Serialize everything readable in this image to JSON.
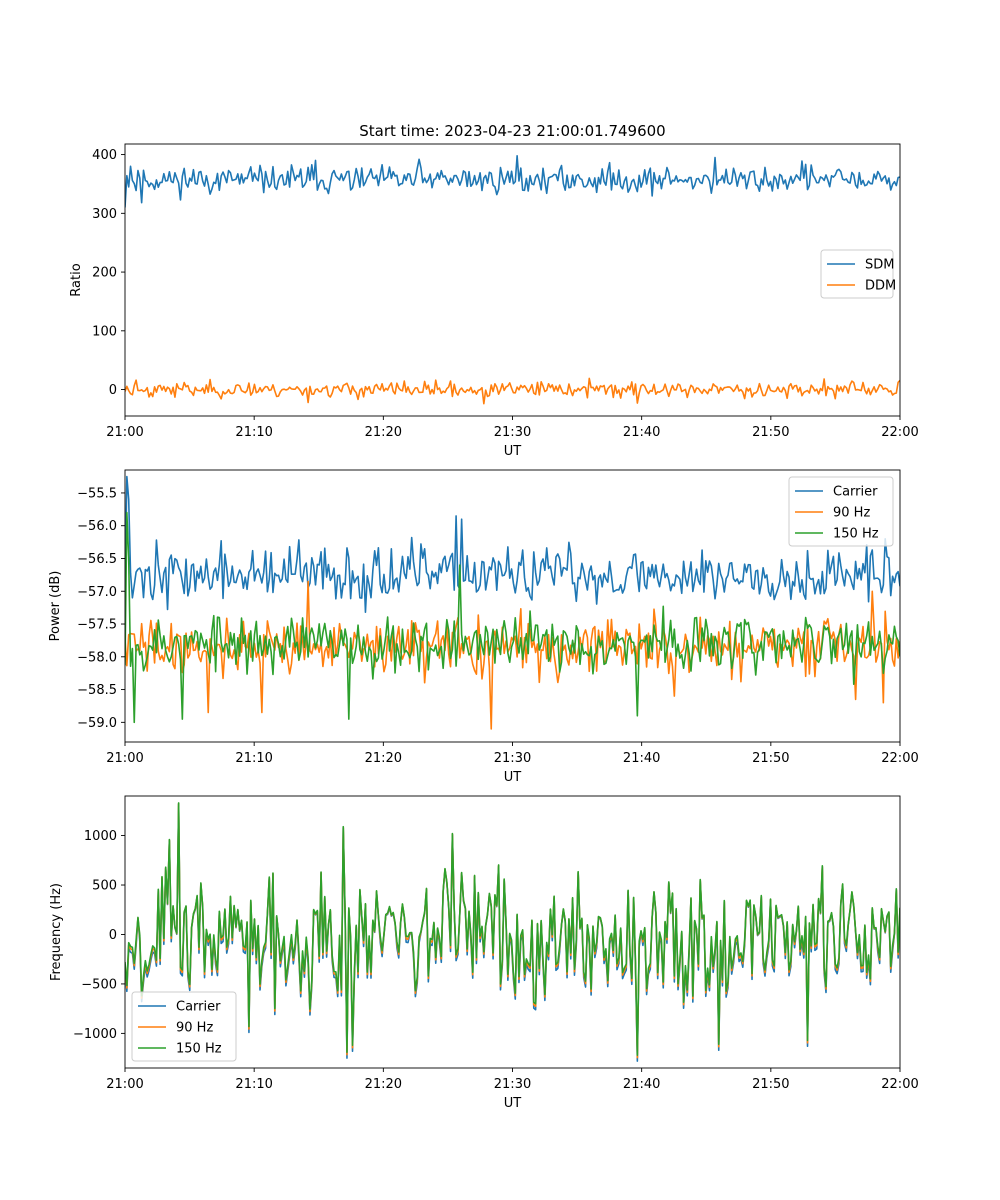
{
  "figure": {
    "suptitle": "Start time: 2023-04-23 21:00:01.749600"
  },
  "colors": {
    "blue": "#1f77b4",
    "orange": "#ff7f0e",
    "green": "#2ca02c"
  },
  "chart_data": [
    {
      "type": "line",
      "title": "Start time: 2023-04-23 21:00:01.749600",
      "xlabel": "UT",
      "ylabel": "Ratio",
      "x_ticks": [
        "21:00",
        "21:10",
        "21:20",
        "21:30",
        "21:40",
        "21:50",
        "22:00"
      ],
      "xlim": [
        "21:00",
        "22:00"
      ],
      "ylim": [
        -45,
        418
      ],
      "y_ticks": [
        0,
        100,
        200,
        300,
        400
      ],
      "y_tick_labels": [
        "0",
        "100",
        "200",
        "300",
        "400"
      ],
      "legend_position": "center-right",
      "grid": false,
      "series": [
        {
          "name": "SDM",
          "color": "#1f77b4",
          "mean": 357,
          "amplitude": 16,
          "seed": 11,
          "spikes": [
            [
              0,
              310
            ],
            [
              0.4,
              380
            ],
            [
              1.3,
              318
            ],
            [
              14.7,
              390
            ],
            [
              22.8,
              392
            ],
            [
              30.3,
              398
            ],
            [
              45.7,
              395
            ],
            [
              52.4,
              389
            ],
            [
              59.9,
              361
            ]
          ]
        },
        {
          "name": "DDM",
          "color": "#ff7f0e",
          "mean": 0,
          "amplitude": 9,
          "seed": 23,
          "spikes": [
            [
              0.9,
              16
            ],
            [
              14.2,
              -22
            ],
            [
              27.8,
              -24
            ],
            [
              35.9,
              19
            ],
            [
              39.7,
              -23
            ],
            [
              54.1,
              18
            ]
          ]
        }
      ]
    },
    {
      "type": "line",
      "xlabel": "UT",
      "ylabel": "Power (dB)",
      "x_ticks": [
        "21:00",
        "21:10",
        "21:20",
        "21:30",
        "21:40",
        "21:50",
        "22:00"
      ],
      "xlim": [
        "21:00",
        "22:00"
      ],
      "ylim": [
        -59.3,
        -55.15
      ],
      "y_ticks": [
        -59.0,
        -58.5,
        -58.0,
        -57.5,
        -57.0,
        -56.5,
        -56.0,
        -55.5
      ],
      "y_tick_labels": [
        "−59.0",
        "−58.5",
        "−58.0",
        "−57.5",
        "−57.0",
        "−56.5",
        "−56.0",
        "−55.5"
      ],
      "legend_position": "upper-right",
      "grid": false,
      "series": [
        {
          "name": "Carrier",
          "color": "#1f77b4",
          "mean": -56.75,
          "amplitude": 0.3,
          "seed": 37,
          "spikes": [
            [
              0.1,
              -55.25
            ],
            [
              0.3,
              -55.6
            ],
            [
              0.6,
              -57.1
            ],
            [
              25.7,
              -55.85
            ],
            [
              26.1,
              -55.9
            ],
            [
              58.9,
              -56.2
            ],
            [
              59.9,
              -56.7
            ]
          ]
        },
        {
          "name": "90 Hz",
          "color": "#ff7f0e",
          "mean": -57.85,
          "amplitude": 0.3,
          "seed": 41,
          "spikes": [
            [
              6.5,
              -58.85
            ],
            [
              10.6,
              -58.85
            ],
            [
              28.3,
              -59.1
            ],
            [
              42.5,
              -58.6
            ],
            [
              56.6,
              -58.65
            ],
            [
              58.7,
              -58.7
            ],
            [
              57.8,
              -57.0
            ],
            [
              14.2,
              -56.85
            ]
          ]
        },
        {
          "name": "150 Hz",
          "color": "#2ca02c",
          "mean": -57.8,
          "amplitude": 0.3,
          "seed": 53,
          "spikes": [
            [
              0.1,
              -55.8
            ],
            [
              0.3,
              -56.5
            ],
            [
              0.7,
              -59.0
            ],
            [
              4.4,
              -58.95
            ],
            [
              17.3,
              -58.95
            ],
            [
              25.9,
              -56.6
            ],
            [
              39.7,
              -58.9
            ]
          ]
        }
      ]
    },
    {
      "type": "line",
      "xlabel": "UT",
      "ylabel": "Frequency (Hz)",
      "x_ticks": [
        "21:00",
        "21:10",
        "21:20",
        "21:30",
        "21:40",
        "21:50",
        "22:00"
      ],
      "xlim": [
        "21:00",
        "22:00"
      ],
      "ylim": [
        -1350,
        1400
      ],
      "y_ticks": [
        -1000,
        -500,
        0,
        500,
        1000
      ],
      "y_tick_labels": [
        "−1000",
        "−500",
        "0",
        "500",
        "1000"
      ],
      "legend_position": "lower-left",
      "grid": false,
      "series": [
        {
          "name": "Carrier",
          "color": "#1f77b4",
          "offset": -60,
          "mean": 0,
          "amplitude": 430,
          "seed": 67,
          "spikes": [
            [
              4.2,
              1330
            ],
            [
              3.5,
              960
            ],
            [
              9.6,
              -930
            ],
            [
              16.9,
              1090
            ],
            [
              17.2,
              -1190
            ],
            [
              17.6,
              -1120
            ],
            [
              25.3,
              1020
            ],
            [
              39.7,
              -1220
            ],
            [
              45.9,
              -1110
            ],
            [
              52.9,
              -1070
            ]
          ]
        },
        {
          "name": "90 Hz",
          "color": "#ff7f0e",
          "offset": -25,
          "mean": 0,
          "amplitude": 430,
          "seed": 67,
          "spikes": [
            [
              4.2,
              1330
            ],
            [
              3.5,
              960
            ],
            [
              9.6,
              -930
            ],
            [
              16.9,
              1090
            ],
            [
              17.2,
              -1190
            ],
            [
              17.6,
              -1120
            ],
            [
              25.3,
              1020
            ],
            [
              39.7,
              -1220
            ],
            [
              45.9,
              -1110
            ],
            [
              52.9,
              -1070
            ]
          ]
        },
        {
          "name": "150 Hz",
          "color": "#2ca02c",
          "offset": 0,
          "mean": 0,
          "amplitude": 430,
          "seed": 67,
          "spikes": [
            [
              4.2,
              1330
            ],
            [
              3.5,
              960
            ],
            [
              9.6,
              -930
            ],
            [
              16.9,
              1090
            ],
            [
              17.2,
              -1190
            ],
            [
              17.6,
              -1120
            ],
            [
              25.3,
              1020
            ],
            [
              39.7,
              -1220
            ],
            [
              45.9,
              -1110
            ],
            [
              52.9,
              -1070
            ]
          ]
        }
      ]
    }
  ]
}
